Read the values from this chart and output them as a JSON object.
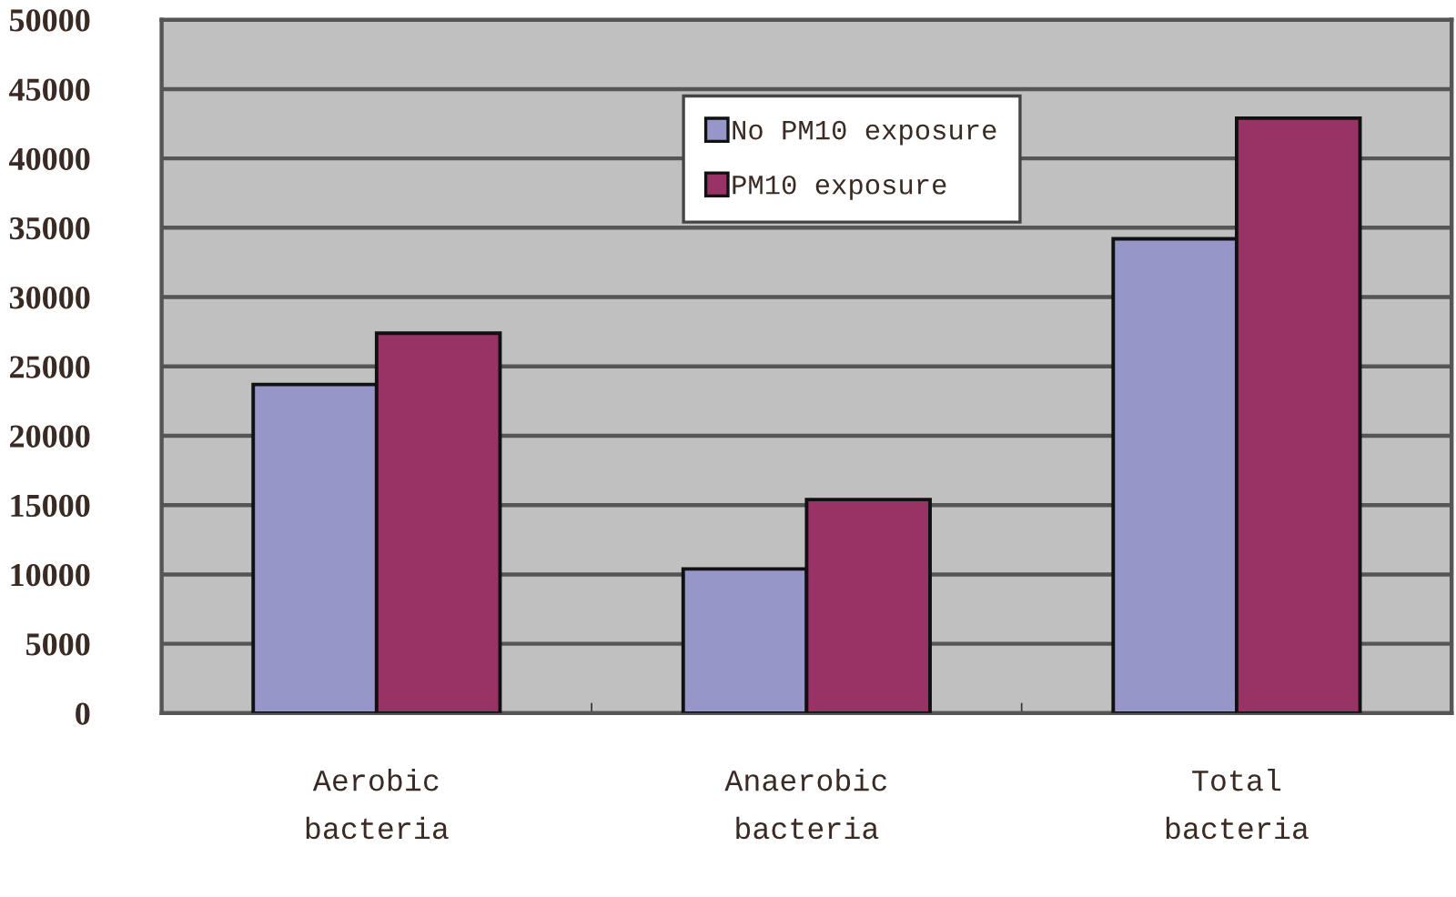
{
  "chart_data": {
    "type": "bar",
    "categories": [
      "Aerobic\nbacteria",
      "Anaerobic\nbacteria",
      "Total\nbacteria"
    ],
    "series": [
      {
        "name": "No PM10 exposure",
        "color": "#9696c8",
        "values": [
          23700,
          10400,
          34200
        ]
      },
      {
        "name": "PM10 exposure",
        "color": "#993366",
        "values": [
          27400,
          15400,
          42900
        ]
      }
    ],
    "ylim": [
      0,
      50000
    ],
    "yticks": [
      0,
      5000,
      10000,
      15000,
      20000,
      25000,
      30000,
      35000,
      40000,
      45000,
      50000
    ],
    "grid": "y",
    "legend": "top"
  }
}
